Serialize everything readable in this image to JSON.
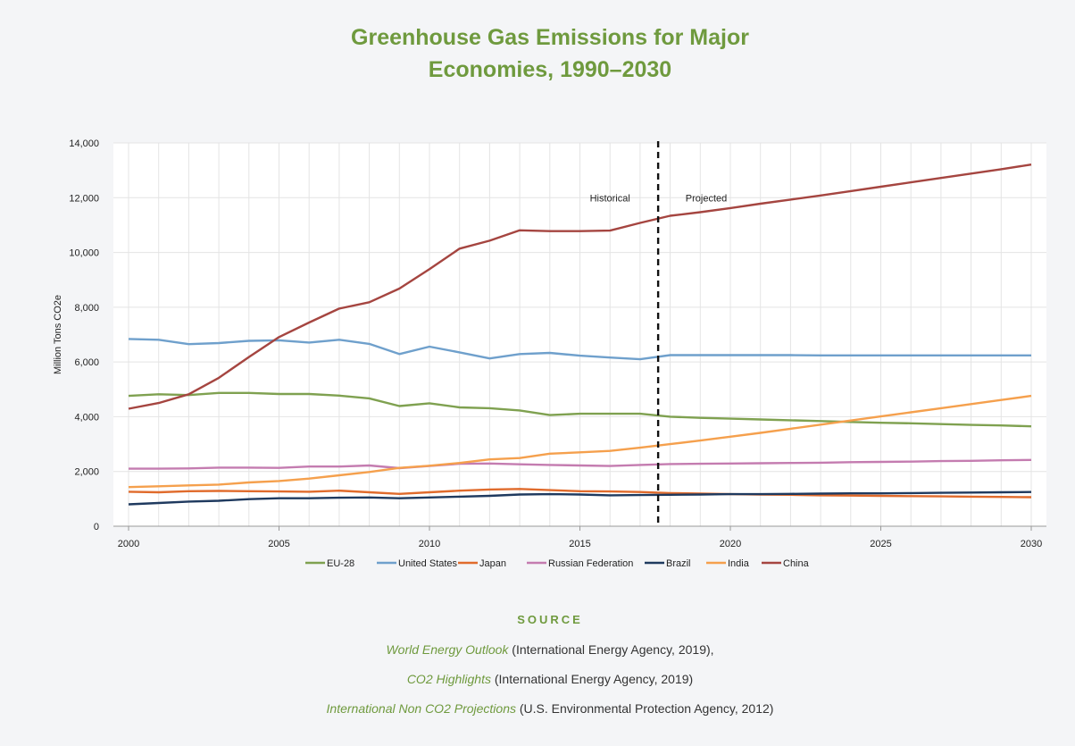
{
  "header": {
    "title_line1": "Greenhouse Gas Emissions for Major",
    "title_line2": "Economies, 1990–2030"
  },
  "source": {
    "heading": "SOURCE",
    "lines": [
      {
        "italic": "World Energy Outlook",
        "rest": " (International Energy Agency, 2019),"
      },
      {
        "italic": "CO2 Highlights",
        "rest": " (International Energy Agency, 2019)"
      },
      {
        "italic": "International Non CO2 Projections",
        "rest": " (U.S. Environmental Protection Agency, 2012)"
      }
    ]
  },
  "chart_data": {
    "type": "line",
    "title": "Greenhouse Gas Emissions for Major Economies, 1990–2030",
    "xlabel": "",
    "ylabel": "Million Tons CO2e",
    "xlim": [
      2000,
      2030
    ],
    "ylim": [
      0,
      14000
    ],
    "x_ticks": [
      2000,
      2005,
      2010,
      2015,
      2020,
      2025,
      2030
    ],
    "y_ticks": [
      0,
      2000,
      4000,
      6000,
      8000,
      10000,
      12000,
      14000
    ],
    "y_tick_labels": [
      "0",
      "2,000",
      "4,000",
      "6,000",
      "8,000",
      "10,000",
      "12,000",
      "14,000"
    ],
    "grid": true,
    "legend_position": "bottom",
    "divider_x": 2017.6,
    "annotations": [
      {
        "text": "Historical",
        "x": 2016.0,
        "y": 12000
      },
      {
        "text": "Projected",
        "x": 2019.2,
        "y": 12000
      }
    ],
    "series": [
      {
        "name": "EU-28",
        "color": "#7fa150",
        "points": [
          [
            2000,
            4760
          ],
          [
            2001,
            4820
          ],
          [
            2002,
            4790
          ],
          [
            2003,
            4870
          ],
          [
            2004,
            4870
          ],
          [
            2005,
            4830
          ],
          [
            2006,
            4830
          ],
          [
            2007,
            4770
          ],
          [
            2008,
            4670
          ],
          [
            2009,
            4390
          ],
          [
            2010,
            4490
          ],
          [
            2011,
            4340
          ],
          [
            2012,
            4310
          ],
          [
            2013,
            4230
          ],
          [
            2014,
            4060
          ],
          [
            2015,
            4110
          ],
          [
            2016,
            4110
          ],
          [
            2017,
            4110
          ],
          [
            2018,
            4000
          ],
          [
            2019,
            3960
          ],
          [
            2020,
            3930
          ],
          [
            2021,
            3900
          ],
          [
            2022,
            3870
          ],
          [
            2023,
            3840
          ],
          [
            2024,
            3810
          ],
          [
            2025,
            3780
          ],
          [
            2026,
            3760
          ],
          [
            2027,
            3730
          ],
          [
            2028,
            3700
          ],
          [
            2029,
            3680
          ],
          [
            2030,
            3650
          ]
        ]
      },
      {
        "name": "United States",
        "color": "#6fa0cc",
        "points": [
          [
            2000,
            6840
          ],
          [
            2001,
            6810
          ],
          [
            2002,
            6650
          ],
          [
            2003,
            6690
          ],
          [
            2004,
            6770
          ],
          [
            2005,
            6790
          ],
          [
            2006,
            6710
          ],
          [
            2007,
            6810
          ],
          [
            2008,
            6660
          ],
          [
            2009,
            6290
          ],
          [
            2010,
            6560
          ],
          [
            2011,
            6350
          ],
          [
            2012,
            6130
          ],
          [
            2013,
            6290
          ],
          [
            2014,
            6330
          ],
          [
            2015,
            6230
          ],
          [
            2016,
            6160
          ],
          [
            2017,
            6100
          ],
          [
            2018,
            6250
          ],
          [
            2019,
            6250
          ],
          [
            2020,
            6250
          ],
          [
            2021,
            6250
          ],
          [
            2022,
            6250
          ],
          [
            2023,
            6240
          ],
          [
            2024,
            6240
          ],
          [
            2025,
            6240
          ],
          [
            2026,
            6240
          ],
          [
            2027,
            6240
          ],
          [
            2028,
            6240
          ],
          [
            2029,
            6240
          ],
          [
            2030,
            6240
          ]
        ]
      },
      {
        "name": "Japan",
        "color": "#e06b2c",
        "points": [
          [
            2000,
            1260
          ],
          [
            2001,
            1240
          ],
          [
            2002,
            1280
          ],
          [
            2003,
            1290
          ],
          [
            2004,
            1280
          ],
          [
            2005,
            1270
          ],
          [
            2006,
            1260
          ],
          [
            2007,
            1300
          ],
          [
            2008,
            1240
          ],
          [
            2009,
            1180
          ],
          [
            2010,
            1240
          ],
          [
            2011,
            1300
          ],
          [
            2012,
            1340
          ],
          [
            2013,
            1360
          ],
          [
            2014,
            1320
          ],
          [
            2015,
            1280
          ],
          [
            2016,
            1270
          ],
          [
            2017,
            1250
          ],
          [
            2018,
            1210
          ],
          [
            2019,
            1190
          ],
          [
            2020,
            1170
          ],
          [
            2021,
            1160
          ],
          [
            2022,
            1150
          ],
          [
            2023,
            1130
          ],
          [
            2024,
            1120
          ],
          [
            2025,
            1110
          ],
          [
            2026,
            1100
          ],
          [
            2027,
            1090
          ],
          [
            2028,
            1080
          ],
          [
            2029,
            1070
          ],
          [
            2030,
            1060
          ]
        ]
      },
      {
        "name": "Russian Federation",
        "color": "#c47cb0",
        "points": [
          [
            2000,
            2100
          ],
          [
            2001,
            2100
          ],
          [
            2002,
            2110
          ],
          [
            2003,
            2140
          ],
          [
            2004,
            2140
          ],
          [
            2005,
            2130
          ],
          [
            2006,
            2180
          ],
          [
            2007,
            2180
          ],
          [
            2008,
            2220
          ],
          [
            2009,
            2120
          ],
          [
            2010,
            2200
          ],
          [
            2011,
            2280
          ],
          [
            2012,
            2290
          ],
          [
            2013,
            2260
          ],
          [
            2014,
            2240
          ],
          [
            2015,
            2220
          ],
          [
            2016,
            2200
          ],
          [
            2017,
            2240
          ],
          [
            2018,
            2270
          ],
          [
            2019,
            2280
          ],
          [
            2020,
            2290
          ],
          [
            2021,
            2300
          ],
          [
            2022,
            2310
          ],
          [
            2023,
            2320
          ],
          [
            2024,
            2340
          ],
          [
            2025,
            2350
          ],
          [
            2026,
            2360
          ],
          [
            2027,
            2380
          ],
          [
            2028,
            2390
          ],
          [
            2029,
            2410
          ],
          [
            2030,
            2420
          ]
        ]
      },
      {
        "name": "Brazil",
        "color": "#1f3a5f",
        "points": [
          [
            2000,
            800
          ],
          [
            2001,
            850
          ],
          [
            2002,
            900
          ],
          [
            2003,
            930
          ],
          [
            2004,
            990
          ],
          [
            2005,
            1020
          ],
          [
            2006,
            1020
          ],
          [
            2007,
            1040
          ],
          [
            2008,
            1050
          ],
          [
            2009,
            1020
          ],
          [
            2010,
            1050
          ],
          [
            2011,
            1080
          ],
          [
            2012,
            1110
          ],
          [
            2013,
            1160
          ],
          [
            2014,
            1170
          ],
          [
            2015,
            1160
          ],
          [
            2016,
            1130
          ],
          [
            2017,
            1140
          ],
          [
            2018,
            1150
          ],
          [
            2019,
            1160
          ],
          [
            2020,
            1170
          ],
          [
            2021,
            1170
          ],
          [
            2022,
            1180
          ],
          [
            2023,
            1190
          ],
          [
            2024,
            1200
          ],
          [
            2025,
            1200
          ],
          [
            2026,
            1210
          ],
          [
            2027,
            1220
          ],
          [
            2028,
            1230
          ],
          [
            2029,
            1240
          ],
          [
            2030,
            1250
          ]
        ]
      },
      {
        "name": "India",
        "color": "#f5a04d",
        "points": [
          [
            2000,
            1430
          ],
          [
            2001,
            1460
          ],
          [
            2002,
            1490
          ],
          [
            2003,
            1520
          ],
          [
            2004,
            1600
          ],
          [
            2005,
            1650
          ],
          [
            2006,
            1740
          ],
          [
            2007,
            1860
          ],
          [
            2008,
            1980
          ],
          [
            2009,
            2130
          ],
          [
            2010,
            2210
          ],
          [
            2011,
            2310
          ],
          [
            2012,
            2440
          ],
          [
            2013,
            2490
          ],
          [
            2014,
            2650
          ],
          [
            2015,
            2700
          ],
          [
            2016,
            2750
          ],
          [
            2017,
            2870
          ],
          [
            2018,
            3000
          ],
          [
            2019,
            3130
          ],
          [
            2020,
            3270
          ],
          [
            2021,
            3410
          ],
          [
            2022,
            3560
          ],
          [
            2023,
            3710
          ],
          [
            2024,
            3860
          ],
          [
            2025,
            4010
          ],
          [
            2026,
            4160
          ],
          [
            2027,
            4310
          ],
          [
            2028,
            4460
          ],
          [
            2029,
            4610
          ],
          [
            2030,
            4760
          ]
        ]
      },
      {
        "name": "China",
        "color": "#a54540",
        "points": [
          [
            2000,
            4290
          ],
          [
            2001,
            4500
          ],
          [
            2002,
            4820
          ],
          [
            2003,
            5420
          ],
          [
            2004,
            6180
          ],
          [
            2005,
            6910
          ],
          [
            2006,
            7440
          ],
          [
            2007,
            7950
          ],
          [
            2008,
            8180
          ],
          [
            2009,
            8680
          ],
          [
            2010,
            9390
          ],
          [
            2011,
            10140
          ],
          [
            2012,
            10430
          ],
          [
            2013,
            10810
          ],
          [
            2014,
            10780
          ],
          [
            2015,
            10780
          ],
          [
            2016,
            10800
          ],
          [
            2017,
            11080
          ],
          [
            2018,
            11340
          ],
          [
            2019,
            11470
          ],
          [
            2020,
            11620
          ],
          [
            2021,
            11780
          ],
          [
            2022,
            11930
          ],
          [
            2023,
            12080
          ],
          [
            2024,
            12240
          ],
          [
            2025,
            12400
          ],
          [
            2026,
            12560
          ],
          [
            2027,
            12720
          ],
          [
            2028,
            12880
          ],
          [
            2029,
            13040
          ],
          [
            2030,
            13210
          ]
        ]
      }
    ]
  }
}
